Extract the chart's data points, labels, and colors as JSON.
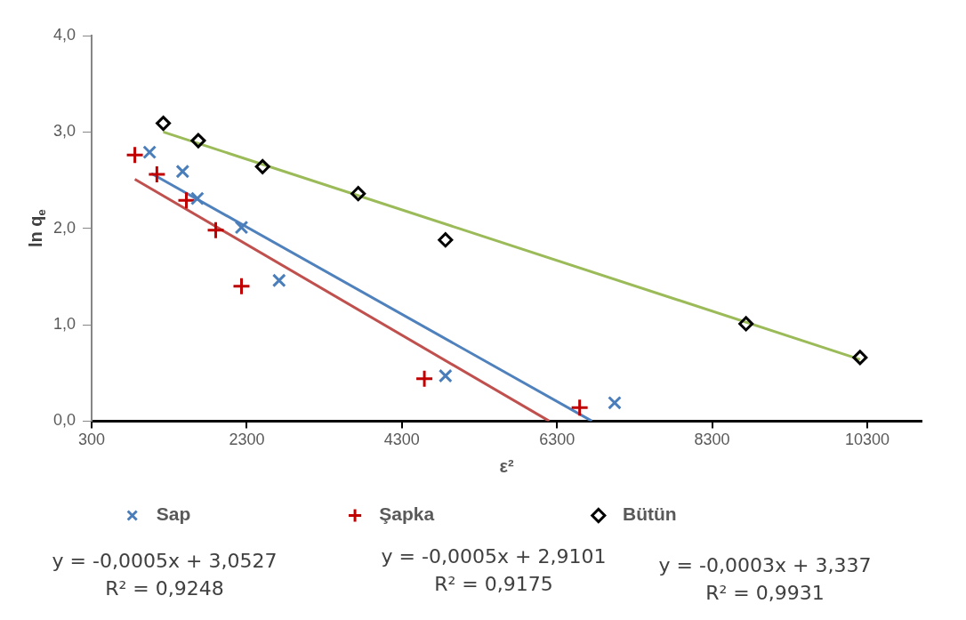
{
  "chart_data": {
    "type": "scatter",
    "xlabel": "ε²",
    "ylabel": "ln q$_{e}$",
    "xlim": [
      300,
      11000
    ],
    "xticks": [
      300,
      2300,
      4300,
      6300,
      8300,
      10300
    ],
    "ylim": [
      0,
      4
    ],
    "yticks": [
      {
        "value": 0,
        "label": "0,0"
      },
      {
        "value": 1,
        "label": "1,0"
      },
      {
        "value": 2,
        "label": "2,0"
      },
      {
        "value": 3,
        "label": "3,0"
      },
      {
        "value": 4,
        "label": "4,0"
      }
    ],
    "grid": false,
    "legend": "bottom",
    "series": [
      {
        "name": "Sap",
        "color": "#4a7ebb",
        "marker": "x",
        "x": [
          1047,
          1473,
          1663,
          2232,
          2717,
          4862,
          7043
        ],
        "values": [
          2.79,
          2.59,
          2.31,
          2.01,
          1.46,
          0.47,
          0.19
        ]
      },
      {
        "name": "Şapka",
        "color": "#c00000",
        "marker": "cross",
        "x": [
          857,
          1141,
          1521,
          1900,
          2232,
          4590,
          6592
        ],
        "values": [
          2.76,
          2.56,
          2.29,
          1.98,
          1.4,
          0.44,
          0.14
        ]
      },
      {
        "name": "Bütün",
        "color": "#000000",
        "marker": "diamond",
        "x": [
          1224,
          1675,
          2504,
          3737,
          4862,
          8737,
          10207
        ],
        "values": [
          3.09,
          2.91,
          2.64,
          2.36,
          1.88,
          1.01,
          0.66
        ]
      },
      {
        "type": "line",
        "color": "#4f81bd",
        "marker": "none",
        "x": [
          1070,
          6750
        ],
        "values": [
          2.57,
          0
        ]
      },
      {
        "type": "line",
        "color": "#c0504d",
        "marker": "none",
        "x": [
          857,
          6200
        ],
        "values": [
          2.51,
          0
        ]
      },
      {
        "type": "line",
        "color": "#9bbb59",
        "marker": "none",
        "x": [
          1224,
          10207
        ],
        "values": [
          3.0,
          0.64
        ]
      }
    ],
    "annotations": [
      "y = -0,0005x + 3,0527\nR² = 0,9248",
      "y = -0,0005x + 2,9101\nR² = 0,9175",
      "y = -0,0003x + 3,337\nR² = 0,9931"
    ]
  }
}
